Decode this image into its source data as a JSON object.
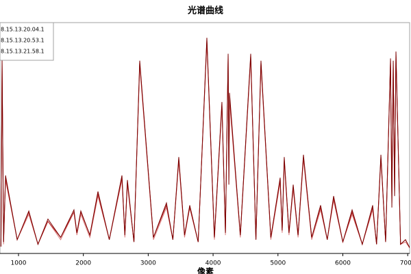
{
  "chart_data": {
    "type": "line",
    "title": "光谱曲线",
    "x_label": "像素",
    "x": [
      730,
      747,
      770,
      800,
      980,
      1159,
      1300,
      1454,
      1650,
      1855,
      1900,
      1961,
      2100,
      2225,
      2400,
      2595,
      2640,
      2679,
      2780,
      2869,
      3080,
      3281,
      3380,
      3471,
      3560,
      3640,
      3770,
      3904,
      4020,
      4136,
      4190,
      4232,
      4243,
      4253,
      4420,
      4580,
      4660,
      4738,
      4890,
      5034,
      5065,
      5097,
      5170,
      5235,
      5310,
      5393,
      5520,
      5657,
      5760,
      5858,
      6000,
      6143,
      6300,
      6460,
      6520,
      6587,
      6660,
      6735,
      6756,
      6777,
      6798,
      6819,
      6890,
      6966,
      7040
    ],
    "series": [
      {
        "name": "8.15.13.20.04.1",
        "color": "#7a0000",
        "values": [
          3,
          85,
          5,
          34,
          6,
          18.5,
          4,
          15,
          7,
          19,
          9,
          18.5,
          8,
          27,
          6,
          34,
          8,
          32,
          5,
          84,
          7,
          22,
          6,
          42,
          8,
          21,
          5,
          94,
          7,
          66,
          9,
          87,
          30,
          70,
          8,
          87,
          6,
          84,
          7,
          33,
          10,
          42,
          9,
          30,
          8,
          43,
          7,
          21,
          6,
          25,
          5,
          19,
          4,
          21,
          4,
          43,
          5,
          85,
          20,
          84,
          25,
          88,
          4,
          6,
          2
        ]
      },
      {
        "name": "8.15.13.20.53.1",
        "color": "#b22222",
        "values": [
          3,
          83,
          5,
          33,
          6,
          18,
          4,
          14,
          7,
          18,
          9,
          18,
          8,
          26,
          6,
          33,
          8,
          31,
          5,
          83,
          7,
          21,
          6,
          41,
          8,
          20,
          5,
          93,
          7,
          65,
          9,
          86,
          32,
          68,
          8,
          86,
          6,
          83,
          7,
          32,
          10,
          41,
          9,
          29,
          8,
          42,
          7,
          20,
          6,
          24,
          5,
          18,
          4,
          20,
          4,
          42,
          5,
          84,
          22,
          83,
          26,
          87,
          4,
          6,
          2
        ]
      },
      {
        "name": "8.15.13.21.58.1",
        "color": "#d97a7a",
        "values": [
          3,
          82,
          4,
          32,
          6,
          17,
          4,
          14,
          6,
          18,
          8,
          17,
          7,
          25,
          6,
          32,
          7,
          30,
          5,
          82,
          6,
          20,
          6,
          40,
          7,
          20,
          5,
          92,
          6,
          64,
          8,
          85,
          33,
          67,
          7,
          85,
          6,
          82,
          6,
          31,
          9,
          40,
          8,
          28,
          7,
          41,
          6,
          19,
          6,
          23,
          5,
          17,
          4,
          19,
          4,
          41,
          5,
          83,
          23,
          82,
          27,
          86,
          4,
          5,
          2
        ]
      }
    ],
    "xlim": [
      715,
      7051
    ],
    "ylim": [
      0,
      100
    ],
    "xticks": [
      1000,
      2000,
      3000,
      4000,
      5000,
      6000,
      7000
    ],
    "legend": "upper-left"
  }
}
